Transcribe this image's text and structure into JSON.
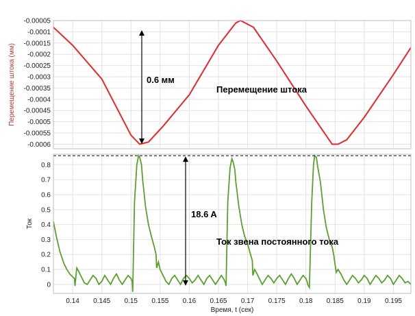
{
  "chart_data": [
    {
      "type": "line",
      "ylabel": "Перемещение штока (мм)",
      "xlim": [
        0.1367,
        0.198
      ],
      "ylim": [
        -0.00062,
        -5e-05
      ],
      "y_ticks": [
        -5e-05,
        -0.0001,
        -0.00015,
        -0.0002,
        -0.00025,
        -0.0003,
        -0.00035,
        -0.0004,
        -0.00045,
        -0.0005,
        -0.00055,
        -0.0006
      ],
      "y_tick_labels": [
        "-0.00005",
        "-0.0001",
        "-0.00015",
        "-0.0002",
        "-0.00025",
        "-0.0003",
        "-0.00035",
        "-0.0004",
        "-0.00045",
        "-0.0005",
        "-0.00055",
        "-0.0006"
      ],
      "grid": true,
      "series": [
        {
          "name": "Перемещение штока",
          "color": "#e8262b",
          "x": [
            0.1367,
            0.14,
            0.145,
            0.15,
            0.1515,
            0.153,
            0.1555,
            0.16,
            0.165,
            0.168,
            0.1688,
            0.171,
            0.175,
            0.18,
            0.1845,
            0.1855,
            0.187,
            0.19,
            0.195,
            0.198
          ],
          "y": [
            -8e-05,
            -0.00016,
            -0.00031,
            -0.00056,
            -0.0006,
            -0.00059,
            -0.00052,
            -0.00038,
            -0.00016,
            -6e-05,
            -5e-05,
            -8e-05,
            -0.00023,
            -0.00043,
            -0.0006,
            -0.0006,
            -0.00058,
            -0.00048,
            -0.00029,
            -0.00017
          ]
        }
      ],
      "annotations": [
        {
          "text": "0.6 мм"
        },
        {
          "text": "Перемещение штока"
        }
      ]
    },
    {
      "type": "line",
      "xlabel": "Время, t (сек)",
      "ylabel": "Ток",
      "xlim": [
        0.1367,
        0.198
      ],
      "ylim": [
        -0.06,
        0.87
      ],
      "x_ticks": [
        0.14,
        0.145,
        0.15,
        0.155,
        0.16,
        0.165,
        0.17,
        0.175,
        0.18,
        0.185,
        0.19,
        0.195
      ],
      "x_tick_labels": [
        "0.14",
        "0.145",
        "0.15",
        "0.155",
        "0.16",
        "0.165",
        "0.17",
        "0.175",
        "0.18",
        "0.185",
        "0.19",
        "0.195"
      ],
      "y_ticks": [
        0,
        0.1,
        0.2,
        0.3,
        0.4,
        0.5,
        0.6,
        0.7,
        0.8
      ],
      "y_tick_labels": [
        "0",
        "0.1",
        "0.2",
        "0.3",
        "0.4",
        "0.5",
        "0.6",
        "0.7",
        "0.8"
      ],
      "grid": true,
      "reference_line_y": 0.86,
      "series": [
        {
          "name": "Ток звена постоянного тока",
          "color": "#5aa02c",
          "x": [
            0.1367,
            0.1372,
            0.1378,
            0.1385,
            0.139,
            0.1395,
            0.14,
            0.1403,
            0.1404,
            0.1407,
            0.141,
            0.1415,
            0.142,
            0.1425,
            0.143,
            0.1435,
            0.144,
            0.1445,
            0.145,
            0.1455,
            0.146,
            0.1465,
            0.147,
            0.1475,
            0.148,
            0.1485,
            0.149,
            0.1495,
            0.15,
            0.1502,
            0.1503,
            0.1506,
            0.151,
            0.1513,
            0.1515,
            0.1518,
            0.152,
            0.1525,
            0.153,
            0.1535,
            0.154,
            0.1543,
            0.1544,
            0.1547,
            0.155,
            0.1555,
            0.156,
            0.1565,
            0.157,
            0.1575,
            0.158,
            0.1585,
            0.159,
            0.1595,
            0.16,
            0.1605,
            0.161,
            0.1615,
            0.162,
            0.1625,
            0.163,
            0.1635,
            0.164,
            0.1645,
            0.165,
            0.1655,
            0.166,
            0.1662,
            0.1663,
            0.1666,
            0.167,
            0.1673,
            0.1675,
            0.1678,
            0.168,
            0.1685,
            0.169,
            0.1695,
            0.17,
            0.1705,
            0.1708,
            0.1709,
            0.1712,
            0.1715,
            0.172,
            0.1725,
            0.173,
            0.1735,
            0.174,
            0.1745,
            0.175,
            0.1755,
            0.176,
            0.1765,
            0.177,
            0.1775,
            0.178,
            0.1785,
            0.179,
            0.1795,
            0.18,
            0.1802,
            0.1803,
            0.1806,
            0.181,
            0.1813,
            0.1815,
            0.1818,
            0.182,
            0.1825,
            0.183,
            0.1835,
            0.184,
            0.1845,
            0.1848,
            0.1849,
            0.1852,
            0.1855,
            0.186,
            0.1865,
            0.187,
            0.1875,
            0.188,
            0.1885,
            0.189,
            0.1895,
            0.19,
            0.1905,
            0.191,
            0.1915,
            0.192,
            0.1925,
            0.193,
            0.1935,
            0.194,
            0.1945,
            0.195,
            0.1955,
            0.196,
            0.1965,
            0.197,
            0.1975,
            0.198
          ],
          "y": [
            0.42,
            0.32,
            0.22,
            0.14,
            0.1,
            0.07,
            0.05,
            0.04,
            -0.01,
            0.11,
            0.09,
            0.05,
            0.01,
            0.0,
            0.03,
            0.06,
            0.04,
            0.0,
            0.02,
            0.06,
            0.03,
            0.0,
            0.04,
            0.07,
            0.03,
            0.0,
            0.03,
            0.06,
            0.04,
            0.02,
            -0.05,
            0.55,
            0.8,
            0.86,
            0.85,
            0.8,
            0.7,
            0.52,
            0.4,
            0.32,
            0.25,
            0.2,
            0.11,
            0.15,
            0.1,
            0.06,
            0.02,
            0.0,
            0.04,
            0.06,
            0.03,
            0.0,
            0.04,
            0.06,
            0.04,
            0.01,
            0.03,
            0.06,
            0.03,
            0.0,
            0.04,
            0.06,
            0.03,
            0.0,
            0.03,
            0.06,
            0.03,
            0.01,
            -0.01,
            0.55,
            0.78,
            0.84,
            0.82,
            0.77,
            0.68,
            0.52,
            0.4,
            0.32,
            0.27,
            0.2,
            0.16,
            0.06,
            0.1,
            0.08,
            0.04,
            0.0,
            0.03,
            0.06,
            0.04,
            0.01,
            0.04,
            0.06,
            0.03,
            0.0,
            0.04,
            0.07,
            0.04,
            0.0,
            0.03,
            0.06,
            0.04,
            0.02,
            0.0,
            -0.02,
            0.55,
            0.8,
            0.86,
            0.85,
            0.79,
            0.68,
            0.5,
            0.38,
            0.3,
            0.25,
            0.19,
            0.16,
            0.08,
            0.1,
            0.07,
            0.03,
            0.0,
            0.03,
            0.06,
            0.04,
            0.01,
            0.03,
            0.06,
            0.04,
            0.0,
            0.03,
            0.06,
            0.04,
            0.01,
            0.03,
            0.06,
            0.04,
            0.0,
            0.03,
            0.06,
            0.04,
            0.01,
            0.02,
            0.0
          ]
        }
      ],
      "annotations": [
        {
          "text": "18.6 A"
        },
        {
          "text": "Ток звена постоянного тока"
        }
      ]
    }
  ]
}
